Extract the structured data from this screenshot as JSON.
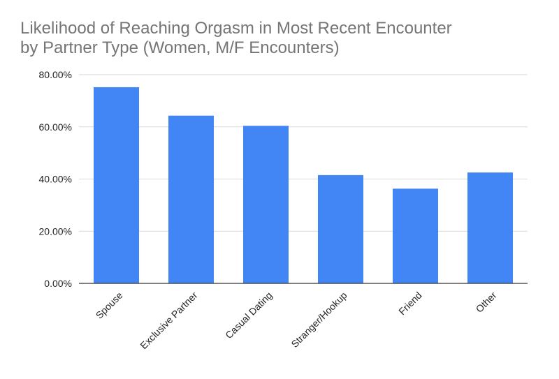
{
  "chart_data": {
    "type": "bar",
    "title_lines": [
      "Likelihood of Reaching Orgasm in Most Recent Encounter",
      "by Partner Type (Women, M/F Encounters)"
    ],
    "xlabel": "",
    "ylabel": "",
    "categories": [
      "Spouse",
      "Exclusive Partner",
      "Casual Dating",
      "Stranger/Hookup",
      "Friend",
      "Other"
    ],
    "values": [
      75.2,
      64.3,
      60.4,
      41.5,
      36.3,
      42.5
    ],
    "ylim": [
      0,
      80
    ],
    "y_ticks": [
      0,
      20,
      40,
      60,
      80
    ],
    "y_tick_labels": [
      "0.00%",
      "20.00%",
      "40.00%",
      "60.00%",
      "80.00%"
    ],
    "grid": true,
    "legend": "none",
    "bar_color": "#4285f4",
    "grid_color": "#d9d9d9",
    "axis_color": "#333333",
    "title_color": "#757575",
    "label_color": "#222222"
  }
}
